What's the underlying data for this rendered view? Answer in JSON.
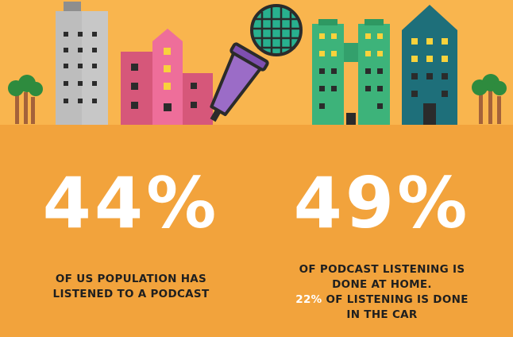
{
  "stats": [
    {
      "value": "44%",
      "caption_lines": [
        "OF US POPULATION HAS",
        "LISTENED TO A PODCAST"
      ]
    },
    {
      "value": "49%",
      "caption_lines": [
        "OF PODCAST LISTENING IS",
        "DONE AT HOME."
      ],
      "highlight_value": "22%",
      "highlight_rest": " OF LISTENING IS DONE",
      "last_line": "IN THE CAR"
    }
  ],
  "colors": {
    "sky": "#F9B54E",
    "ground": "#F2A33C",
    "number": "#FFFFFF",
    "caption": "#1F1F1F",
    "highlight": "#FFFFFF"
  },
  "icons": [
    "building-gray",
    "building-pink",
    "microphone-icon",
    "building-green",
    "building-teal",
    "tree-icon"
  ]
}
